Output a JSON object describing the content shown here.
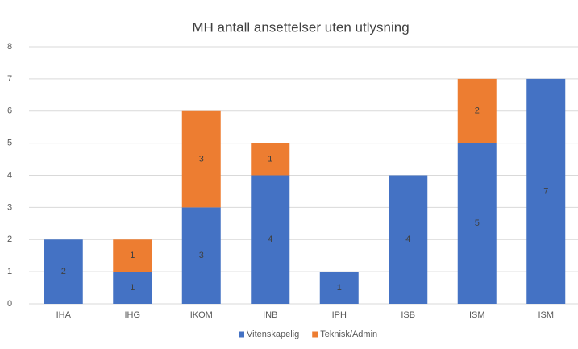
{
  "chart_data": {
    "type": "stacked_bar",
    "title": "MH antall ansettelser uten utlysning",
    "categories": [
      "IHA",
      "IHG",
      "IKOM",
      "INB",
      "IPH",
      "ISB",
      "ISM",
      "ISM"
    ],
    "series": [
      {
        "name": "Vitenskapelig",
        "color": "#4472c4",
        "values": [
          2,
          1,
          3,
          4,
          1,
          4,
          5,
          7
        ]
      },
      {
        "name": "Teknisk/Admin",
        "color": "#ed7d31",
        "values": [
          null,
          1,
          3,
          1,
          null,
          null,
          2,
          null
        ]
      }
    ],
    "ylim": [
      0,
      8
    ],
    "yticks": [
      0,
      1,
      2,
      3,
      4,
      5,
      6,
      7,
      8
    ],
    "grid": true,
    "legend": "bottom"
  }
}
